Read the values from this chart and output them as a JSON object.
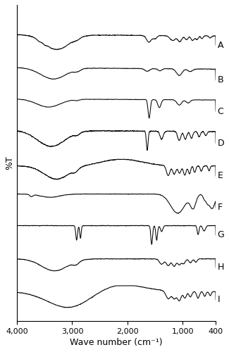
{
  "xlabel": "Wave number (cm⁻¹)",
  "ylabel": "%T",
  "xmin": 400,
  "xmax": 4000,
  "labels": [
    "A",
    "B",
    "C",
    "D",
    "E",
    "F",
    "G",
    "H",
    "I"
  ],
  "xticks": [
    4000,
    3000,
    2000,
    1000,
    400
  ],
  "xtick_labels": [
    "4,000",
    "3,000",
    "2,000",
    "1,000",
    "400"
  ],
  "line_color": "black",
  "bg_color": "white",
  "figsize": [
    3.25,
    5.0
  ],
  "dpi": 100
}
